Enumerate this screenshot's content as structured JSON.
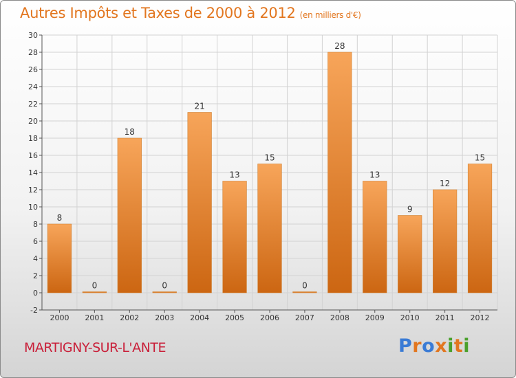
{
  "header": {
    "title": "Autres Impôts et Taxes de 2000 à 2012",
    "subtitle": "(en milliers d'€)"
  },
  "footer": {
    "city": "MARTIGNY-SUR-L'ANTE",
    "logo": "Proxiti"
  },
  "colors": {
    "title": "#e2761f",
    "city": "#c9203a",
    "bar_top": "#f7a55a",
    "bar_bottom": "#cc6612"
  },
  "chart_data": {
    "type": "bar",
    "categories": [
      "2000",
      "2001",
      "2002",
      "2003",
      "2004",
      "2005",
      "2006",
      "2007",
      "2008",
      "2009",
      "2010",
      "2011",
      "2012"
    ],
    "values": [
      8,
      0,
      18,
      0,
      21,
      13,
      15,
      0,
      28,
      13,
      9,
      12,
      15
    ],
    "data_labels": [
      "8",
      "0",
      "18",
      "0",
      "21",
      "13",
      "15",
      "0",
      "28",
      "13",
      "9",
      "12",
      "15"
    ],
    "ylim": [
      -2,
      30
    ],
    "yticks": [
      -2,
      0,
      2,
      4,
      6,
      8,
      10,
      12,
      14,
      16,
      18,
      20,
      22,
      24,
      26,
      28,
      30
    ],
    "grid": true,
    "title": "Autres Impôts et Taxes de 2000 à 2012",
    "xlabel": "",
    "ylabel": ""
  }
}
